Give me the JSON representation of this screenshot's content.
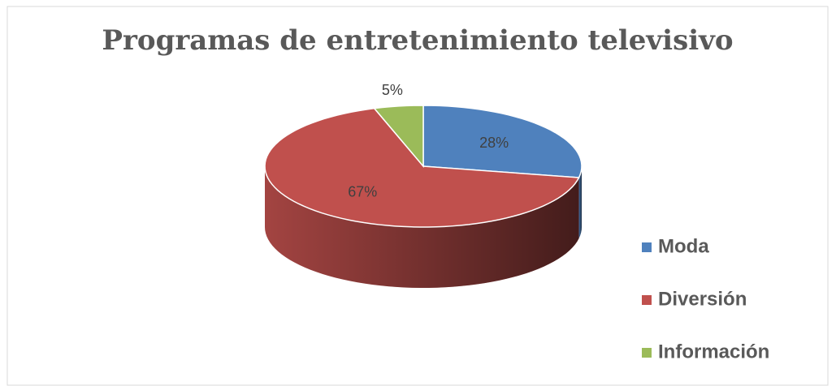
{
  "chart_data": {
    "type": "pie",
    "title": "Programas de entretenimiento televisivo",
    "categories": [
      "Moda",
      "Diversión",
      "Información"
    ],
    "values": [
      28,
      67,
      5
    ],
    "value_labels": [
      "28%",
      "67%",
      "5%"
    ],
    "colors": [
      "#4f81bd",
      "#c0504d",
      "#9bbb59"
    ],
    "legend": "right",
    "three_d": true
  }
}
